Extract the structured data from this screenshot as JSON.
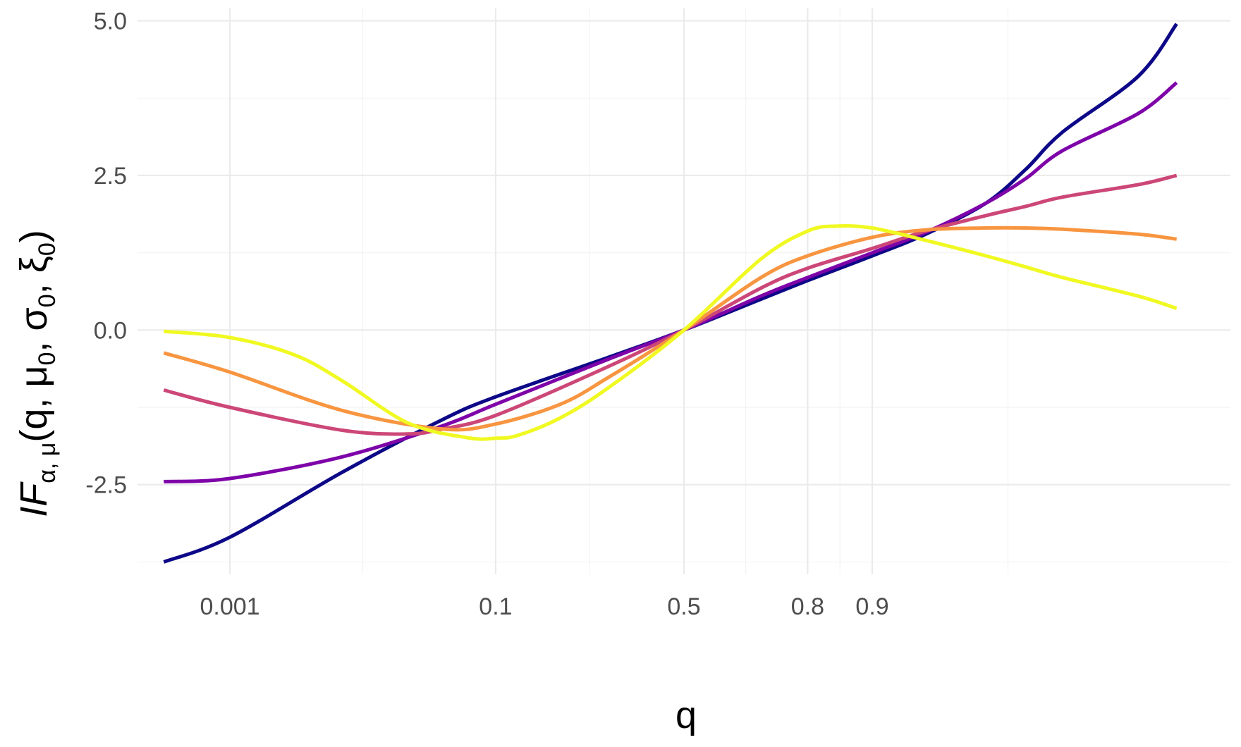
{
  "chart_data": {
    "type": "line",
    "xlabel": "q",
    "ylabel": {
      "main": "IF",
      "sub1": "α, μ",
      "open": "(q, μ",
      "s0": "0",
      "mid1": ", σ",
      "s1": "0",
      "mid2": ", ξ",
      "s2": "0",
      "close": ")"
    },
    "x_scale": "probit",
    "xlim": [
      0.0001,
      0.9999
    ],
    "ylim": [
      -3.95,
      5.2
    ],
    "x_ticks": [
      0.001,
      0.1,
      0.5,
      0.8,
      0.9
    ],
    "x_tick_labels": [
      "0.001",
      "0.1",
      "0.5",
      "0.8",
      "0.9"
    ],
    "y_ticks": [
      -2.5,
      0,
      2.5,
      5
    ],
    "y_tick_labels": [
      "-2.5",
      "0.0",
      "2.5",
      "5.0"
    ],
    "grid": true,
    "legend": "none",
    "series": [
      {
        "color": "#0d0887",
        "x": [
          0.0002,
          0.001,
          0.01,
          0.05,
          0.1,
          0.3,
          0.5,
          0.7,
          0.8,
          0.9,
          0.95,
          0.98,
          0.99,
          0.995,
          0.999,
          0.9996
        ],
        "y": [
          -3.75,
          -3.35,
          -2.3,
          -1.45,
          -1.08,
          -0.45,
          0.0,
          0.5,
          0.8,
          1.2,
          1.55,
          2.05,
          2.6,
          3.2,
          4.1,
          4.95
        ]
      },
      {
        "color": "#7e03a8",
        "x": [
          0.0002,
          0.001,
          0.01,
          0.05,
          0.1,
          0.3,
          0.5,
          0.7,
          0.8,
          0.9,
          0.95,
          0.98,
          0.99,
          0.995,
          0.999,
          0.9996
        ],
        "y": [
          -2.45,
          -2.4,
          -2.05,
          -1.55,
          -1.2,
          -0.48,
          0.0,
          0.55,
          0.85,
          1.25,
          1.58,
          2.05,
          2.45,
          2.9,
          3.5,
          4.0
        ]
      },
      {
        "color": "#cc4778",
        "x": [
          0.0002,
          0.001,
          0.01,
          0.03,
          0.05,
          0.1,
          0.3,
          0.5,
          0.7,
          0.8,
          0.9,
          0.95,
          0.98,
          0.99,
          0.995,
          0.999,
          0.9996
        ],
        "y": [
          -0.97,
          -1.25,
          -1.62,
          -1.68,
          -1.6,
          -1.38,
          -0.6,
          0.0,
          0.68,
          1.0,
          1.32,
          1.6,
          1.85,
          2.0,
          2.15,
          2.35,
          2.5
        ]
      },
      {
        "color": "#f89540",
        "x": [
          0.0002,
          0.001,
          0.01,
          0.05,
          0.1,
          0.2,
          0.3,
          0.5,
          0.7,
          0.8,
          0.9,
          0.95,
          0.98,
          0.99,
          0.995,
          0.999,
          0.9996
        ],
        "y": [
          -0.37,
          -0.68,
          -1.3,
          -1.6,
          -1.52,
          -1.2,
          -0.78,
          0.0,
          0.85,
          1.2,
          1.5,
          1.62,
          1.65,
          1.65,
          1.63,
          1.55,
          1.47
        ]
      },
      {
        "color": "#f0f921",
        "x": [
          0.0002,
          0.001,
          0.004,
          0.01,
          0.03,
          0.07,
          0.1,
          0.13,
          0.2,
          0.3,
          0.5,
          0.7,
          0.8,
          0.85,
          0.9,
          0.95,
          0.98,
          0.99,
          0.995,
          0.999,
          0.9996
        ],
        "y": [
          -0.02,
          -0.12,
          -0.4,
          -0.82,
          -1.5,
          -1.74,
          -1.75,
          -1.7,
          -1.42,
          -0.95,
          0.0,
          1.15,
          1.6,
          1.68,
          1.65,
          1.45,
          1.2,
          1.02,
          0.85,
          0.55,
          0.35
        ]
      }
    ]
  }
}
